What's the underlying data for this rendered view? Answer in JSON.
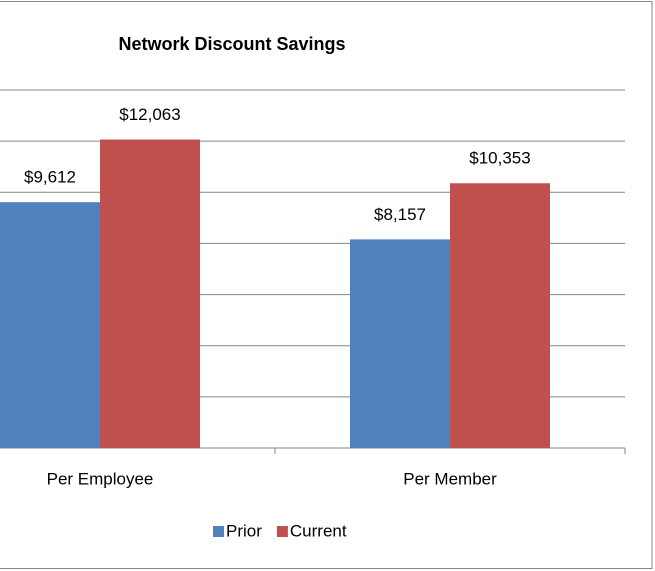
{
  "chart_data": {
    "type": "bar",
    "title": "Network Discount Savings",
    "categories": [
      "Per Employee",
      "Per Member"
    ],
    "series": [
      {
        "name": "Prior",
        "color": "#4f81bd",
        "values": [
          9612,
          8157
        ],
        "value_labels": [
          "$9,612",
          "$8,157"
        ]
      },
      {
        "name": "Current",
        "color": "#c0504d",
        "values": [
          12063,
          10353
        ],
        "value_labels": [
          "$12,063",
          "$10,353"
        ]
      }
    ],
    "ylim": [
      0,
      14000
    ],
    "yticks": [
      0,
      2000,
      4000,
      6000,
      8000,
      10000,
      12000,
      14000
    ],
    "grid": true,
    "legend": "bottom"
  }
}
